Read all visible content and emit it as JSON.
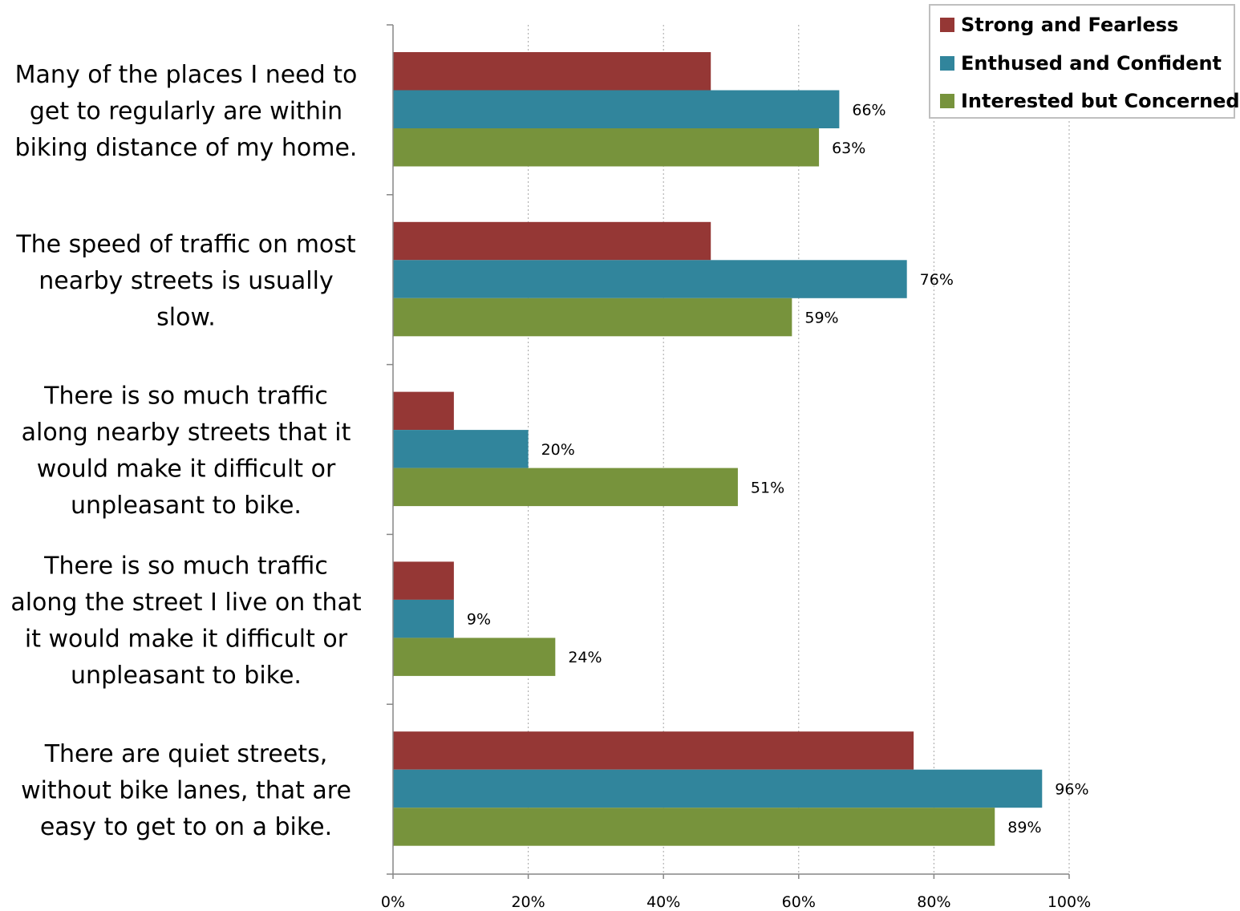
{
  "chart_data": {
    "type": "bar",
    "orientation": "horizontal",
    "categories": [
      "Many of the places I need to get to regularly are within biking distance of my home.",
      "The speed of traffic on most nearby streets is usually slow.",
      "There is so much traffic along nearby streets that it would make it difficult or unpleasant to bike.",
      "There is so much traffic along the street I live on that it would make it difficult or unpleasant to bike.",
      "There are quiet streets, without bike lanes, that are easy to get to on a bike."
    ],
    "category_lines": [
      [
        "Many of the places I need to",
        "get to regularly are within",
        "biking distance of my home."
      ],
      [
        "The speed of traffic on most",
        "nearby streets is usually",
        "slow."
      ],
      [
        "There is so much traffic",
        "along nearby streets that it",
        "would make it difficult or",
        "unpleasant to bike."
      ],
      [
        "There is so much traffic",
        "along the street I live on that",
        "it would make it difficult or",
        "unpleasant to bike."
      ],
      [
        "There are quiet streets,",
        "without bike lanes, that are",
        "easy to get to on a bike."
      ]
    ],
    "series": [
      {
        "name": "Strong and Fearless",
        "color": "#953735",
        "values": [
          47,
          47,
          9,
          9,
          77
        ],
        "show_labels": false
      },
      {
        "name": "Enthused and Confident",
        "color": "#31859c",
        "values": [
          66,
          76,
          20,
          9,
          96
        ],
        "show_labels": true
      },
      {
        "name": "Interested but Concerned",
        "color": "#77933c",
        "values": [
          63,
          59,
          51,
          24,
          89
        ],
        "show_labels": true
      }
    ],
    "xlim": [
      0,
      100
    ],
    "x_ticks": [
      "0%",
      "20%",
      "40%",
      "60%",
      "80%",
      "100%"
    ],
    "grid": "vertical-dotted",
    "legend_position": "top-right",
    "title": "",
    "xlabel": "",
    "ylabel": ""
  }
}
